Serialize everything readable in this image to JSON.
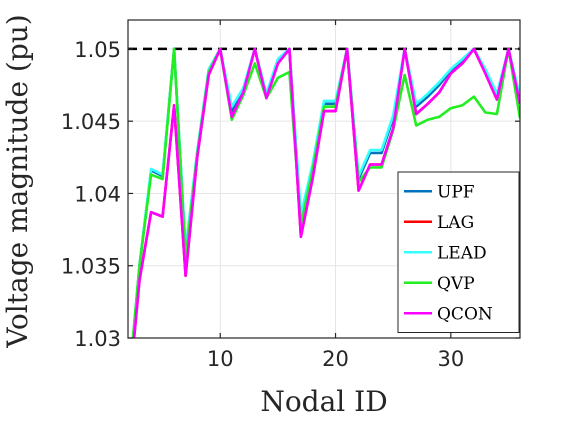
{
  "chart_data": {
    "type": "line",
    "xlabel": "Nodal ID",
    "ylabel": "Voltage magnitude (pu)",
    "xlim": [
      2,
      36
    ],
    "ylim": [
      1.03,
      1.052
    ],
    "xticks": [
      10,
      20,
      30
    ],
    "xtick_labels": [
      "10",
      "20",
      "30"
    ],
    "yticks": [
      1.03,
      1.035,
      1.04,
      1.045,
      1.05
    ],
    "ytick_labels": [
      "1.03",
      "1.035",
      "1.04",
      "1.045",
      "1.05"
    ],
    "grid": true,
    "legend_position": "lower-right",
    "reference_line": {
      "y": 1.05,
      "style": "dashed",
      "color": "#000000"
    },
    "x": [
      2,
      3,
      4,
      5,
      6,
      7,
      8,
      9,
      10,
      11,
      12,
      13,
      14,
      15,
      16,
      17,
      18,
      19,
      20,
      21,
      22,
      23,
      24,
      25,
      26,
      27,
      28,
      29,
      30,
      31,
      32,
      33,
      34,
      35,
      36
    ],
    "series": [
      {
        "name": "UPF",
        "color": "#0072BD",
        "values": [
          1.026,
          1.035,
          1.0416,
          1.0412,
          1.05,
          1.036,
          1.0428,
          1.0485,
          1.05,
          1.0457,
          1.0472,
          1.05,
          1.0468,
          1.0492,
          1.05,
          1.0382,
          1.0418,
          1.0462,
          1.0462,
          1.05,
          1.041,
          1.0428,
          1.0428,
          1.0452,
          1.05,
          1.046,
          1.0467,
          1.0475,
          1.0485,
          1.0492,
          1.05,
          1.0485,
          1.0467,
          1.05,
          1.0465
        ]
      },
      {
        "name": "LAG",
        "color": "#FF0000",
        "values": [
          1.0255,
          1.034,
          1.0387,
          1.0384,
          1.0461,
          1.0343,
          1.0425,
          1.0482,
          1.05,
          1.0453,
          1.047,
          1.05,
          1.0466,
          1.049,
          1.05,
          1.037,
          1.041,
          1.0457,
          1.0457,
          1.05,
          1.0402,
          1.042,
          1.042,
          1.0445,
          1.05,
          1.0455,
          1.0462,
          1.047,
          1.0483,
          1.049,
          1.05,
          1.0483,
          1.0465,
          1.05,
          1.0462
        ]
      },
      {
        "name": "LEAD",
        "color": "#33FFFF",
        "values": [
          1.026,
          1.035,
          1.0417,
          1.0413,
          1.05,
          1.0361,
          1.0429,
          1.0486,
          1.05,
          1.046,
          1.0473,
          1.05,
          1.0469,
          1.0493,
          1.05,
          1.0385,
          1.042,
          1.0464,
          1.0464,
          1.05,
          1.0412,
          1.043,
          1.043,
          1.0454,
          1.05,
          1.0462,
          1.0469,
          1.0477,
          1.0486,
          1.0493,
          1.05,
          1.0486,
          1.0469,
          1.05,
          1.0467
        ]
      },
      {
        "name": "QVP",
        "color": "#22EE22",
        "values": [
          1.0262,
          1.035,
          1.0413,
          1.041,
          1.05,
          1.0355,
          1.0427,
          1.0484,
          1.05,
          1.0451,
          1.0468,
          1.049,
          1.0466,
          1.048,
          1.0484,
          1.0378,
          1.0416,
          1.046,
          1.046,
          1.05,
          1.0408,
          1.0418,
          1.0418,
          1.0444,
          1.0482,
          1.0447,
          1.0451,
          1.0453,
          1.0459,
          1.0461,
          1.0467,
          1.0456,
          1.0455,
          1.05,
          1.0452
        ]
      },
      {
        "name": "QCON",
        "color": "#FF00FF",
        "values": [
          1.0255,
          1.034,
          1.0387,
          1.0384,
          1.0461,
          1.0343,
          1.0425,
          1.0482,
          1.05,
          1.0453,
          1.047,
          1.05,
          1.0466,
          1.049,
          1.05,
          1.037,
          1.041,
          1.0457,
          1.0457,
          1.05,
          1.0402,
          1.042,
          1.042,
          1.0445,
          1.05,
          1.0455,
          1.0462,
          1.047,
          1.0483,
          1.049,
          1.05,
          1.0483,
          1.0465,
          1.05,
          1.0462
        ]
      }
    ]
  }
}
